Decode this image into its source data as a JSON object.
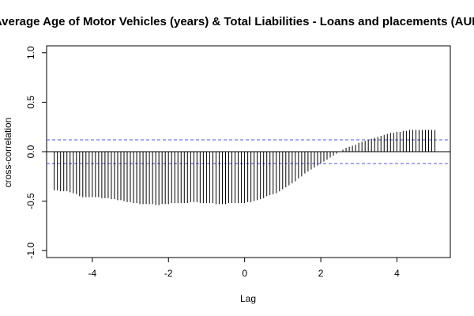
{
  "chart_data": {
    "type": "bar",
    "title": "Average Age of Motor Vehicles (years) & Total Liabilities - Loans and placements (AUD",
    "xlabel": "Lag",
    "ylabel": "cross-correlation",
    "xlim": [
      -5.2,
      5.4
    ],
    "ylim": [
      -1.07,
      1.07
    ],
    "xticks": [
      "-4",
      "-2",
      "0",
      "2",
      "4"
    ],
    "yticks": [
      "-1.0",
      "-0.5",
      "0.0",
      "0.5",
      "1.0"
    ],
    "confidence_bounds": [
      0.12,
      -0.12
    ],
    "lag_start": -5,
    "lag_step": 0.0833,
    "values": [
      -0.39,
      -0.39,
      -0.4,
      -0.4,
      -0.4,
      -0.41,
      -0.42,
      -0.43,
      -0.45,
      -0.46,
      -0.46,
      -0.46,
      -0.46,
      -0.46,
      -0.46,
      -0.47,
      -0.47,
      -0.47,
      -0.48,
      -0.48,
      -0.49,
      -0.49,
      -0.5,
      -0.51,
      -0.51,
      -0.52,
      -0.52,
      -0.53,
      -0.53,
      -0.53,
      -0.53,
      -0.53,
      -0.54,
      -0.54,
      -0.53,
      -0.53,
      -0.53,
      -0.52,
      -0.52,
      -0.52,
      -0.52,
      -0.52,
      -0.52,
      -0.51,
      -0.51,
      -0.51,
      -0.52,
      -0.52,
      -0.52,
      -0.52,
      -0.52,
      -0.53,
      -0.53,
      -0.53,
      -0.53,
      -0.52,
      -0.52,
      -0.52,
      -0.52,
      -0.52,
      -0.52,
      -0.51,
      -0.51,
      -0.5,
      -0.49,
      -0.48,
      -0.47,
      -0.45,
      -0.44,
      -0.43,
      -0.42,
      -0.4,
      -0.38,
      -0.36,
      -0.34,
      -0.32,
      -0.3,
      -0.27,
      -0.25,
      -0.22,
      -0.2,
      -0.18,
      -0.16,
      -0.14,
      -0.12,
      -0.1,
      -0.08,
      -0.06,
      -0.04,
      -0.02,
      0.0,
      0.02,
      0.04,
      0.05,
      0.06,
      0.07,
      0.09,
      0.1,
      0.11,
      0.12,
      0.13,
      0.14,
      0.15,
      0.16,
      0.17,
      0.18,
      0.19,
      0.19,
      0.2,
      0.2,
      0.21,
      0.21,
      0.22,
      0.22,
      0.22,
      0.22,
      0.22,
      0.22,
      0.22,
      0.22,
      0.22
    ],
    "grid": false,
    "colors": {
      "bars": "#000000",
      "bounds": "#4f4fff",
      "zero_line": "#000000"
    }
  }
}
